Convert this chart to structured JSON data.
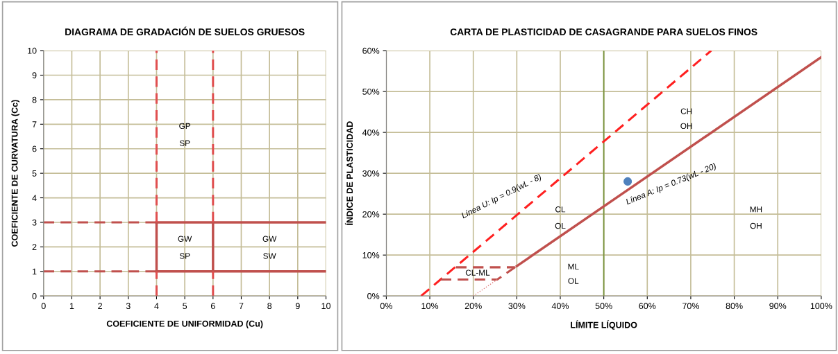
{
  "chart_data": [
    {
      "type": "line",
      "title": "DIAGRAMA DE GRADACIÓN DE SUELOS GRUESOS",
      "xlabel": "COEFICIENTE DE UNIFORMIDAD (Cu)",
      "ylabel": "COEFICIENTE DE CURVATURA (Cc)",
      "xlim": [
        0,
        10
      ],
      "xticks": [
        0,
        1,
        2,
        3,
        4,
        5,
        6,
        7,
        8,
        9,
        10
      ],
      "ylim": [
        0,
        10
      ],
      "yticks": [
        0,
        1,
        2,
        3,
        4,
        5,
        6,
        7,
        8,
        9,
        10
      ],
      "grid": true,
      "marker": "none",
      "series": [
        {
          "color": "#c0504d",
          "x": [
            0,
            4
          ],
          "values": [
            3,
            3
          ],
          "line_style": "dashed"
        },
        {
          "color": "#c0504d",
          "x": [
            0,
            4
          ],
          "values": [
            1,
            1
          ],
          "line_style": "dashed"
        },
        {
          "color": "#c0504d",
          "x": [
            4,
            10
          ],
          "values": [
            3,
            3
          ],
          "line_style": "solid"
        },
        {
          "color": "#c0504d",
          "x": [
            4,
            10
          ],
          "values": [
            1,
            1
          ],
          "line_style": "solid"
        },
        {
          "color": "#c0504d",
          "x": [
            4,
            4
          ],
          "values": [
            1,
            3
          ],
          "line_style": "solid"
        },
        {
          "color": "#c0504d",
          "x": [
            6,
            6
          ],
          "values": [
            1,
            3
          ],
          "line_style": "solid"
        },
        {
          "color": "#e05050",
          "x": [
            4,
            4
          ],
          "values": [
            0,
            1
          ],
          "line_style": "dashed"
        },
        {
          "color": "#e05050",
          "x": [
            4,
            4
          ],
          "values": [
            3,
            10
          ],
          "line_style": "dashed"
        },
        {
          "color": "#e05050",
          "x": [
            6,
            6
          ],
          "values": [
            0,
            1
          ],
          "line_style": "dashed"
        },
        {
          "color": "#e05050",
          "x": [
            6,
            6
          ],
          "values": [
            3,
            10
          ],
          "line_style": "dashed"
        }
      ],
      "annotations": [
        "GP",
        "SP",
        "GW",
        "SP",
        "GW",
        "SW"
      ]
    },
    {
      "type": "line",
      "title": "CARTA DE PLASTICIDAD DE CASAGRANDE PARA SUELOS FINOS",
      "xlabel": "LÍMITE LÍQUIDO",
      "ylabel": "ÍNDICE DE PLASTICIDAD",
      "xlim": [
        0,
        100
      ],
      "xticks": [
        {
          "value": 0,
          "label": "0%"
        },
        {
          "value": 10,
          "label": "10%"
        },
        {
          "value": 20,
          "label": "20%"
        },
        {
          "value": 30,
          "label": "30%"
        },
        {
          "value": 40,
          "label": "40%"
        },
        {
          "value": 50,
          "label": "50%"
        },
        {
          "value": 60,
          "label": "60%"
        },
        {
          "value": 70,
          "label": "70%"
        },
        {
          "value": 80,
          "label": "80%"
        },
        {
          "value": 90,
          "label": "90%"
        },
        {
          "value": 100,
          "label": "100%"
        }
      ],
      "ylim": [
        0,
        60
      ],
      "yticks": [
        {
          "value": 0,
          "label": "0%"
        },
        {
          "value": 10,
          "label": "10%"
        },
        {
          "value": 20,
          "label": "20%"
        },
        {
          "value": 30,
          "label": "30%"
        },
        {
          "value": 40,
          "label": "40%"
        },
        {
          "value": 50,
          "label": "50%"
        },
        {
          "value": 60,
          "label": "60%"
        }
      ],
      "grid": true,
      "marker": "none",
      "series": [
        {
          "color": "#ff2020",
          "x": [
            8,
            74.7
          ],
          "values": [
            0,
            60
          ],
          "line_style": "dashed"
        },
        {
          "color": "#c0504d",
          "x": [
            30,
            100
          ],
          "values": [
            7.3,
            58.4
          ],
          "line_style": "solid"
        },
        {
          "color": "#c0504d",
          "x": [
            16,
            29.5
          ],
          "values": [
            7,
            7
          ],
          "line_style": "dashed"
        },
        {
          "color": "#c0504d",
          "x": [
            12.5,
            25.5,
            30
          ],
          "values": [
            4,
            4,
            7.3
          ],
          "line_style": "dashed"
        },
        {
          "color": "#e08080",
          "x": [
            20,
            25.5
          ],
          "values": [
            0,
            4
          ],
          "line_style": "dotted"
        },
        {
          "type": "scatter",
          "color": "#4f81bd",
          "x": [
            55.5
          ],
          "values": [
            28
          ],
          "marker": "circle"
        }
      ],
      "ref_lines": [
        {
          "axis": "x",
          "value": 50,
          "color": "#77933c",
          "line_style": "solid"
        }
      ],
      "annotations": [
        "Línea U: Ip = 0.9(wL - 8)",
        "Línea A: Ip = 0.73(wL - 20)",
        "CL",
        "OL",
        "ML",
        "OL",
        "CH",
        "OH",
        "MH",
        "OH",
        "CL-ML"
      ]
    }
  ]
}
